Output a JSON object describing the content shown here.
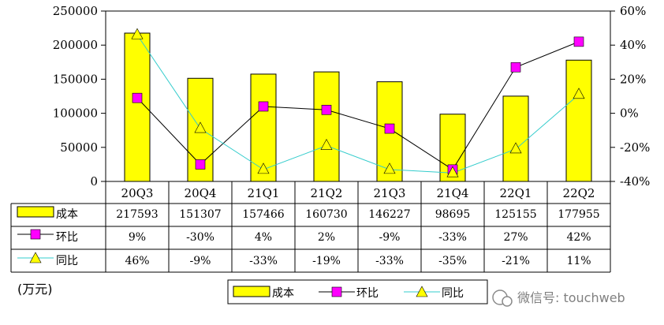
{
  "chart_data": {
    "type": "bar",
    "categories": [
      "20Q3",
      "20Q4",
      "21Q1",
      "21Q2",
      "21Q3",
      "21Q4",
      "22Q1",
      "22Q2"
    ],
    "series": [
      {
        "name": "成本",
        "type": "bar",
        "axis": "left",
        "color": "#ffff00",
        "values": [
          217593,
          151307,
          157466,
          160730,
          146227,
          98695,
          125155,
          177955
        ],
        "labels": [
          "217593",
          "151307",
          "157466",
          "160730",
          "146227",
          "98695",
          "125155",
          "177955"
        ]
      },
      {
        "name": "环比",
        "type": "line",
        "axis": "right",
        "color": "#000000",
        "marker_color": "#ff00ff",
        "values": [
          9,
          -30,
          4,
          2,
          -9,
          -33,
          27,
          42
        ],
        "labels": [
          "9%",
          "-30%",
          "4%",
          "2%",
          "-9%",
          "-33%",
          "27%",
          "42%"
        ]
      },
      {
        "name": "同比",
        "type": "line",
        "axis": "right",
        "color": "#33cccc",
        "marker_color": "#ffff00",
        "values": [
          46,
          -9,
          -33,
          -19,
          -33,
          -35,
          -21,
          11
        ],
        "labels": [
          "46%",
          "-9%",
          "-33%",
          "-19%",
          "-33%",
          "-35%",
          "-21%",
          "11%"
        ]
      }
    ],
    "y_left": {
      "ylim": [
        0,
        250000
      ],
      "ticks": [
        0,
        50000,
        100000,
        150000,
        200000,
        250000
      ],
      "tick_labels": [
        "0",
        "50000",
        "100000",
        "150000",
        "200000",
        "250000"
      ]
    },
    "y_right": {
      "ylim": [
        -40,
        60
      ],
      "ticks": [
        -40,
        -20,
        0,
        20,
        40,
        60
      ],
      "tick_labels": [
        "-40%",
        "-20%",
        "0%",
        "20%",
        "40%",
        "60%"
      ]
    },
    "unit_label": "(万元)",
    "legend": {
      "placement": "bottom-center",
      "items": [
        "成本",
        "环比",
        "同比"
      ]
    }
  },
  "watermark": "微信号: touchweb"
}
